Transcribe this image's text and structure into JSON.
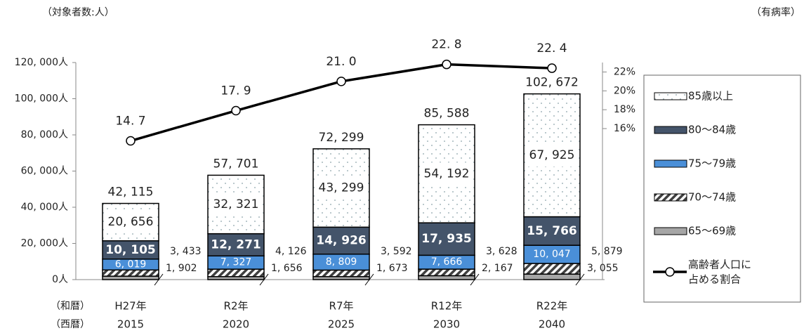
{
  "chart_data": {
    "type": "bar",
    "stacked": true,
    "y_unit_label": "（対象者数:人）",
    "y2_unit_label": "（有病率）",
    "row_labels": [
      "（和暦）",
      "（西暦）"
    ],
    "categories": [
      "H27年",
      "R2年",
      "R7年",
      "R12年",
      "R22年"
    ],
    "categories_2": [
      "2015",
      "2020",
      "2025",
      "2030",
      "2040"
    ],
    "ylim": [
      0,
      120000
    ],
    "yticks": [
      {
        "value": 0,
        "label": "0人"
      },
      {
        "value": 20000,
        "label": "20, 000人"
      },
      {
        "value": 40000,
        "label": "40, 000人"
      },
      {
        "value": 60000,
        "label": "60, 000人"
      },
      {
        "value": 80000,
        "label": "80, 000人"
      },
      {
        "value": 100000,
        "label": "100, 000人"
      },
      {
        "value": 120000,
        "label": "120, 000人"
      }
    ],
    "y2lim": [
      0,
      23
    ],
    "y2ticks": [
      {
        "value": 16,
        "label": "16%"
      },
      {
        "value": 18,
        "label": "18%"
      },
      {
        "value": 20,
        "label": "20%"
      },
      {
        "value": 22,
        "label": "22%"
      }
    ],
    "series": [
      {
        "name": "65～69歳",
        "color": "#a6a6a6",
        "fill_style": "solid",
        "values": [
          1902,
          1656,
          1673,
          2167,
          3055
        ],
        "value_labels": [
          "1, 902",
          "1, 656",
          "1, 673",
          "2, 167",
          "3, 055"
        ]
      },
      {
        "name": "70～74歳",
        "color": "#404040",
        "fill_style": "hatch",
        "values": [
          3433,
          4126,
          3592,
          3628,
          5879
        ],
        "value_labels": [
          "3, 433",
          "4, 126",
          "3, 592",
          "3, 628",
          "5, 879"
        ]
      },
      {
        "name": "75～79歳",
        "color": "#4a8fd8",
        "fill_style": "solid",
        "values": [
          6019,
          7327,
          8809,
          7666,
          10047
        ],
        "value_labels": [
          "6, 019",
          "7, 327",
          "8, 809",
          "7, 666",
          "10, 047"
        ]
      },
      {
        "name": "80～84歳",
        "color": "#44546a",
        "fill_style": "solid",
        "values": [
          10105,
          12271,
          14926,
          17935,
          15766
        ],
        "value_labels": [
          "10, 105",
          "12, 271",
          "14, 926",
          "17, 935",
          "15, 766"
        ]
      },
      {
        "name": "85歳以上",
        "color": "#8aa0a8",
        "fill_style": "dots",
        "values": [
          20656,
          32321,
          43299,
          54192,
          67925
        ],
        "value_labels": [
          "20, 656",
          "32, 321",
          "43, 299",
          "54, 192",
          "67, 925"
        ]
      },
      {
        "name": "高齢者人口に\n占める割合",
        "type": "line",
        "axis": "y2",
        "color": "#000000",
        "values": [
          14.7,
          17.9,
          21.0,
          22.8,
          22.4
        ],
        "value_labels": [
          "14. 7",
          "17. 9",
          "21. 0",
          "22. 8",
          "22. 4"
        ]
      }
    ],
    "totals": {
      "values": [
        42115,
        57701,
        72299,
        85588,
        102672
      ],
      "value_labels": [
        "42, 115",
        "57, 701",
        "72, 299",
        "85, 588",
        "102, 672"
      ]
    }
  }
}
